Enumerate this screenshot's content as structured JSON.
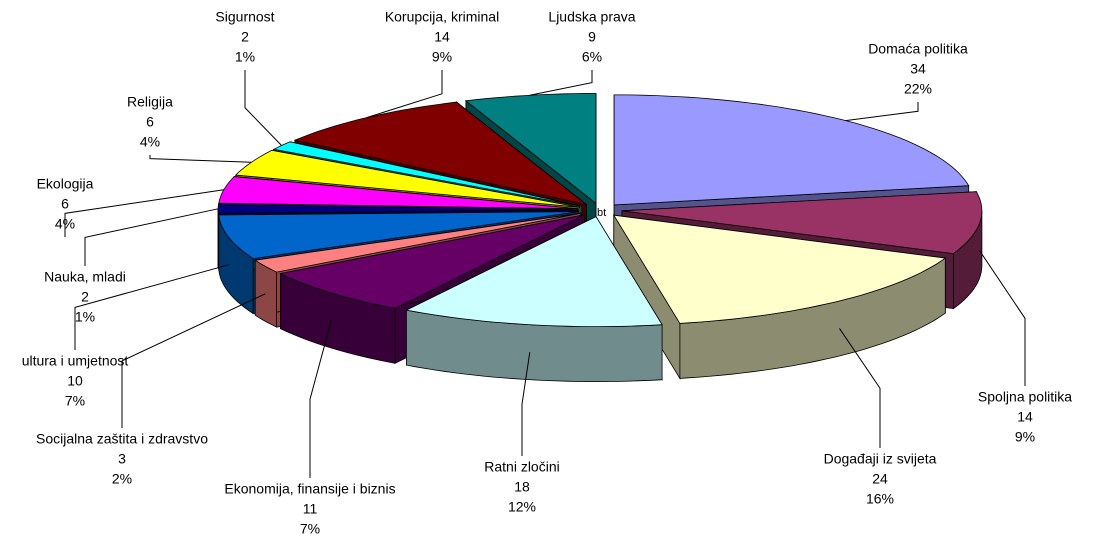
{
  "chart_data": {
    "type": "pie3d",
    "categories": [
      "Domaća politika",
      "Spoljna politika",
      "Događaji iz svijeta",
      "Ratni zločini",
      "Ekonomija, finansije i biznis",
      "Socijalna zaštita i zdravstvo",
      "ultura i umjetnost",
      "Nauka, mladi",
      "Ekologija",
      "Religija",
      "Sigurnost",
      "Korupcija, kriminal",
      "Ljudska prava"
    ],
    "values": [
      34,
      14,
      24,
      18,
      11,
      3,
      10,
      2,
      6,
      6,
      2,
      14,
      9
    ],
    "percent_labels": [
      "22%",
      "9%",
      "16%",
      "12%",
      "7%",
      "2%",
      "7%",
      "1%",
      "4%",
      "4%",
      "1%",
      "9%",
      "6%"
    ],
    "colors": [
      "#9999ff",
      "#993366",
      "#ffffcc",
      "#ccffff",
      "#660066",
      "#ff8080",
      "#0066cc",
      "#000080",
      "#ff00ff",
      "#ffff00",
      "#00ffff",
      "#800000",
      "#008080"
    ],
    "annotation": "bt"
  }
}
